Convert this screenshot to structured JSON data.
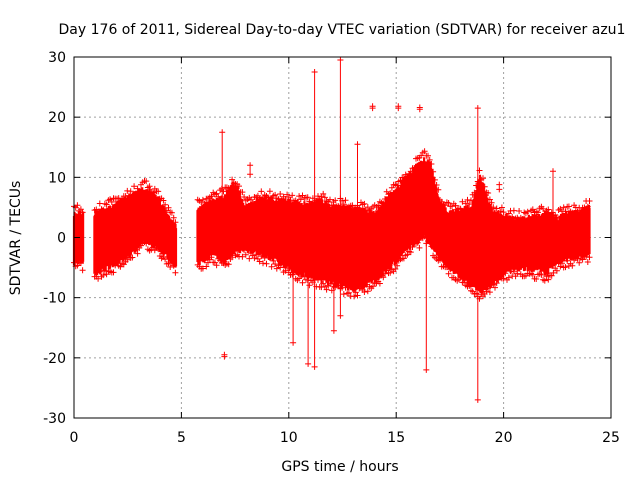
{
  "chart_data": {
    "type": "scatter",
    "title": "Day 176 of 2011, Sidereal Day-to-day VTEC variation (SDTVAR) for receiver azu1",
    "xlabel": "GPS time / hours",
    "ylabel": "SDTVAR / TECUs",
    "xlim": [
      0,
      25
    ],
    "ylim": [
      -30,
      30
    ],
    "xticks": [
      0,
      5,
      10,
      15,
      20,
      25
    ],
    "yticks": [
      -30,
      -20,
      -10,
      0,
      10,
      20,
      30
    ],
    "grid": true,
    "marker": "plus",
    "color": "#ff0000",
    "envelope": {
      "description": "approximate lower/upper bounds of the dense point band, sampled vs GPS hour",
      "x": [
        0.0,
        0.4,
        1.0,
        1.5,
        2.0,
        2.5,
        3.0,
        3.3,
        3.6,
        4.0,
        4.3,
        4.7,
        5.8,
        6.5,
        7.0,
        7.5,
        8.0,
        8.5,
        9.0,
        9.5,
        10.0,
        10.5,
        11.0,
        11.5,
        12.0,
        12.5,
        13.0,
        13.5,
        14.0,
        14.5,
        15.0,
        15.5,
        16.0,
        16.3,
        16.6,
        17.0,
        17.5,
        18.0,
        18.5,
        18.9,
        19.5,
        20.0,
        20.5,
        21.0,
        21.5,
        22.0,
        22.5,
        23.0,
        23.5,
        24.0
      ],
      "lower": [
        -4.0,
        -4.0,
        -6.0,
        -5.0,
        -4.0,
        -3.0,
        -1.5,
        -0.5,
        -1.0,
        -2.0,
        -3.0,
        -4.5,
        -4.0,
        -3.0,
        -4.0,
        -2.0,
        -2.0,
        -2.5,
        -3.0,
        -4.0,
        -5.0,
        -6.0,
        -6.5,
        -7.0,
        -7.5,
        -8.0,
        -8.5,
        -8.0,
        -7.0,
        -5.5,
        -4.0,
        -2.0,
        -0.5,
        0.5,
        -1.0,
        -3.0,
        -5.0,
        -6.5,
        -8.0,
        -9.0,
        -7.5,
        -6.0,
        -5.0,
        -5.0,
        -5.5,
        -6.0,
        -4.0,
        -3.5,
        -3.0,
        -2.5
      ],
      "upper": [
        4.0,
        4.0,
        4.0,
        4.5,
        5.5,
        6.5,
        7.5,
        8.0,
        7.5,
        6.0,
        4.0,
        2.0,
        5.0,
        6.0,
        7.0,
        9.0,
        5.0,
        6.0,
        6.5,
        6.0,
        6.0,
        5.5,
        5.5,
        6.0,
        5.0,
        5.0,
        4.5,
        4.5,
        4.0,
        6.0,
        8.0,
        10.0,
        12.0,
        13.0,
        12.0,
        6.0,
        4.0,
        4.5,
        5.0,
        10.0,
        4.0,
        3.5,
        3.0,
        3.0,
        3.5,
        4.0,
        3.0,
        4.0,
        4.0,
        5.0
      ]
    },
    "spikes": [
      {
        "x": 6.9,
        "lo": 0,
        "hi": 17.5
      },
      {
        "x": 7.0,
        "lo": -19.8,
        "hi": -19.5
      },
      {
        "x": 8.2,
        "lo": 10.5,
        "hi": 12.0
      },
      {
        "x": 10.2,
        "lo": -17.5,
        "hi": 5.0
      },
      {
        "x": 10.9,
        "lo": -21.0,
        "hi": 3.0
      },
      {
        "x": 11.2,
        "lo": -21.5,
        "hi": 27.5
      },
      {
        "x": 12.1,
        "lo": -15.5,
        "hi": 4.0
      },
      {
        "x": 12.4,
        "lo": -13.0,
        "hi": 29.5
      },
      {
        "x": 13.2,
        "lo": 5.0,
        "hi": 15.5
      },
      {
        "x": 13.9,
        "lo": 21.5,
        "hi": 21.8
      },
      {
        "x": 15.1,
        "lo": 21.5,
        "hi": 21.8
      },
      {
        "x": 16.1,
        "lo": 21.3,
        "hi": 21.6
      },
      {
        "x": 16.4,
        "lo": -22.0,
        "hi": 12.0
      },
      {
        "x": 18.8,
        "lo": -27.0,
        "hi": 21.5
      },
      {
        "x": 19.8,
        "lo": 8.0,
        "hi": 8.8
      },
      {
        "x": 22.3,
        "lo": -2.0,
        "hi": 11.0
      }
    ]
  }
}
